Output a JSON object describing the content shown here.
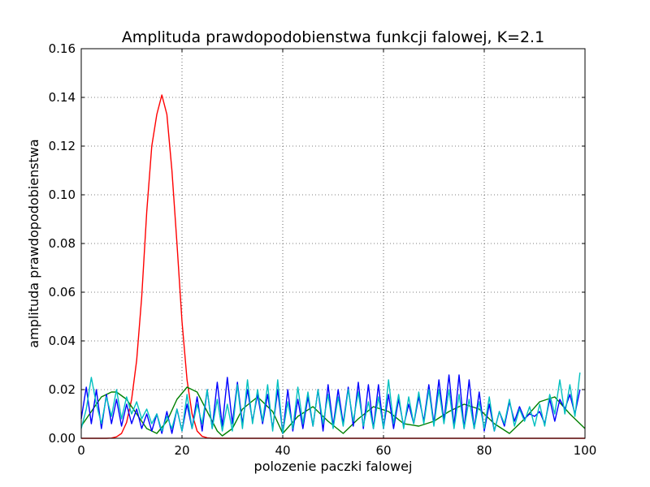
{
  "chart_data": {
    "type": "line",
    "title": "Amplituda prawdopodobienstwa funkcji falowej, K=2.1",
    "xlabel": "polozenie paczki falowej",
    "ylabel": "amplituda prawdopodobienstwa",
    "xlim": [
      0,
      100
    ],
    "ylim": [
      0,
      0.16
    ],
    "xticks": [
      "0",
      "20",
      "40",
      "60",
      "80",
      "100"
    ],
    "yticks": [
      "0.00",
      "0.02",
      "0.04",
      "0.06",
      "0.08",
      "0.10",
      "0.12",
      "0.14",
      "0.16"
    ],
    "grid": true,
    "series": [
      {
        "color": "#ff0000",
        "x": [
          0,
          1,
          2,
          3,
          4,
          5,
          6,
          7,
          8,
          9,
          10,
          11,
          12,
          13,
          14,
          15,
          16,
          17,
          18,
          19,
          20,
          21,
          22,
          23,
          24,
          25,
          26,
          27,
          28,
          29,
          30,
          40,
          60,
          80,
          100
        ],
        "y": [
          0,
          0,
          0,
          0,
          0,
          0,
          0.0001,
          0.0006,
          0.002,
          0.0065,
          0.016,
          0.032,
          0.058,
          0.093,
          0.12,
          0.133,
          0.141,
          0.133,
          0.11,
          0.08,
          0.048,
          0.024,
          0.01,
          0.003,
          0.0008,
          0.0002,
          0,
          0,
          0,
          0,
          0,
          0,
          0,
          0,
          0
        ]
      },
      {
        "color": "#008000",
        "x": [
          0,
          2,
          4,
          6,
          7,
          9,
          11,
          13,
          15,
          17,
          19,
          21,
          23,
          25,
          27,
          28,
          30,
          32,
          35,
          38,
          40,
          43,
          46,
          49,
          52,
          55,
          58,
          61,
          64,
          67,
          70,
          73,
          76,
          79,
          82,
          85,
          88,
          91,
          94,
          97,
          100
        ],
        "y": [
          0.005,
          0.011,
          0.017,
          0.019,
          0.019,
          0.016,
          0.01,
          0.004,
          0.002,
          0.007,
          0.016,
          0.021,
          0.019,
          0.011,
          0.003,
          0.001,
          0.004,
          0.012,
          0.017,
          0.011,
          0.002,
          0.009,
          0.013,
          0.007,
          0.002,
          0.008,
          0.013,
          0.011,
          0.006,
          0.005,
          0.007,
          0.011,
          0.014,
          0.012,
          0.006,
          0.002,
          0.008,
          0.015,
          0.017,
          0.01,
          0.004
        ]
      },
      {
        "color": "#0000ff",
        "x": [
          0,
          1,
          2,
          3,
          4,
          5,
          6,
          7,
          8,
          9,
          10,
          11,
          12,
          13,
          14,
          15,
          16,
          17,
          18,
          19,
          20,
          21,
          22,
          23,
          24,
          25,
          26,
          27,
          28,
          29,
          30,
          31,
          32,
          33,
          34,
          35,
          36,
          37,
          38,
          39,
          40,
          41,
          42,
          43,
          44,
          45,
          46,
          47,
          48,
          49,
          50,
          51,
          52,
          53,
          54,
          55,
          56,
          57,
          58,
          59,
          60,
          61,
          62,
          63,
          64,
          65,
          66,
          67,
          68,
          69,
          70,
          71,
          72,
          73,
          74,
          75,
          76,
          77,
          78,
          79,
          80,
          81,
          82,
          83,
          84,
          85,
          86,
          87,
          88,
          89,
          90,
          91,
          92,
          93,
          94,
          95,
          96,
          97,
          98,
          99
        ],
        "y": [
          0.008,
          0.021,
          0.006,
          0.02,
          0.004,
          0.018,
          0.006,
          0.016,
          0.005,
          0.014,
          0.006,
          0.012,
          0.004,
          0.01,
          0.003,
          0.01,
          0.002,
          0.011,
          0.002,
          0.012,
          0.003,
          0.014,
          0.004,
          0.017,
          0.003,
          0.02,
          0.004,
          0.023,
          0.005,
          0.025,
          0.006,
          0.023,
          0.006,
          0.02,
          0.007,
          0.018,
          0.006,
          0.018,
          0.004,
          0.02,
          0.002,
          0.02,
          0.003,
          0.016,
          0.004,
          0.017,
          0.005,
          0.02,
          0.003,
          0.022,
          0.005,
          0.02,
          0.006,
          0.021,
          0.005,
          0.023,
          0.004,
          0.022,
          0.004,
          0.022,
          0.004,
          0.018,
          0.004,
          0.016,
          0.005,
          0.014,
          0.006,
          0.017,
          0.007,
          0.022,
          0.006,
          0.024,
          0.007,
          0.026,
          0.005,
          0.026,
          0.004,
          0.024,
          0.004,
          0.019,
          0.003,
          0.014,
          0.003,
          0.011,
          0.005,
          0.015,
          0.007,
          0.013,
          0.008,
          0.01,
          0.009,
          0.011,
          0.006,
          0.016,
          0.007,
          0.016,
          0.012,
          0.018,
          0.01,
          0.02
        ]
      },
      {
        "color": "#00bfbf",
        "x": [
          0,
          1,
          2,
          3,
          4,
          5,
          6,
          7,
          8,
          9,
          10,
          11,
          12,
          13,
          14,
          15,
          16,
          17,
          18,
          19,
          20,
          21,
          22,
          23,
          24,
          25,
          26,
          27,
          28,
          29,
          30,
          31,
          32,
          33,
          34,
          35,
          36,
          37,
          38,
          39,
          40,
          41,
          42,
          43,
          44,
          45,
          46,
          47,
          48,
          49,
          50,
          51,
          52,
          53,
          54,
          55,
          56,
          57,
          58,
          59,
          60,
          61,
          62,
          63,
          64,
          65,
          66,
          67,
          68,
          69,
          70,
          71,
          72,
          73,
          74,
          75,
          76,
          77,
          78,
          79,
          80,
          81,
          82,
          83,
          84,
          85,
          86,
          87,
          88,
          89,
          90,
          91,
          92,
          93,
          94,
          95,
          96,
          97,
          98,
          99
        ],
        "y": [
          0.004,
          0.012,
          0.025,
          0.014,
          0.006,
          0.017,
          0.009,
          0.02,
          0.008,
          0.017,
          0.01,
          0.015,
          0.008,
          0.012,
          0.006,
          0.01,
          0.003,
          0.009,
          0.004,
          0.012,
          0.003,
          0.018,
          0.004,
          0.014,
          0.006,
          0.02,
          0.004,
          0.016,
          0.003,
          0.014,
          0.003,
          0.022,
          0.004,
          0.024,
          0.006,
          0.02,
          0.007,
          0.022,
          0.003,
          0.024,
          0.002,
          0.015,
          0.004,
          0.021,
          0.006,
          0.019,
          0.005,
          0.02,
          0.006,
          0.018,
          0.004,
          0.017,
          0.005,
          0.02,
          0.007,
          0.019,
          0.005,
          0.015,
          0.004,
          0.017,
          0.004,
          0.024,
          0.006,
          0.018,
          0.004,
          0.017,
          0.006,
          0.019,
          0.006,
          0.02,
          0.005,
          0.02,
          0.006,
          0.02,
          0.004,
          0.018,
          0.004,
          0.016,
          0.004,
          0.015,
          0.004,
          0.017,
          0.003,
          0.011,
          0.006,
          0.016,
          0.005,
          0.012,
          0.007,
          0.013,
          0.005,
          0.014,
          0.005,
          0.018,
          0.01,
          0.024,
          0.01,
          0.022,
          0.009,
          0.027
        ]
      }
    ]
  }
}
